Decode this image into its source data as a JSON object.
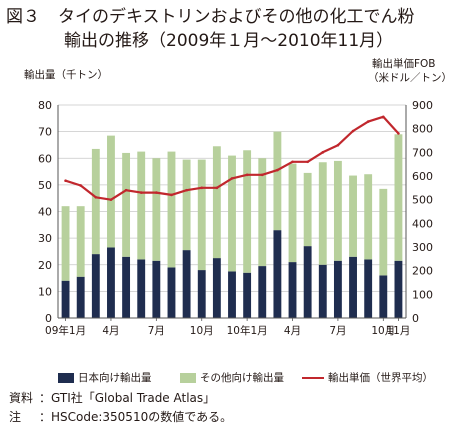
{
  "figure": {
    "number": "図３",
    "title_line1": "タイのデキストリンおよびその他の化工でん粉",
    "title_line2": "輸出の推移（2009年１月〜2010年11月）"
  },
  "chart_data": {
    "type": "bar",
    "stacked": true,
    "ylabel_left": "輸出量（千トン）",
    "ylabel_right_line1": "輸出単価FOB",
    "ylabel_right_line2": "（米ドル／トン）",
    "ylim_left": [
      0,
      80
    ],
    "yticks_left": [
      0,
      10,
      20,
      30,
      40,
      50,
      60,
      70,
      80
    ],
    "ylim_right": [
      0,
      900
    ],
    "yticks_right": [
      0,
      100,
      200,
      300,
      400,
      500,
      600,
      700,
      800,
      900
    ],
    "categories": [
      "2009-01",
      "2009-02",
      "2009-03",
      "2009-04",
      "2009-05",
      "2009-06",
      "2009-07",
      "2009-08",
      "2009-09",
      "2009-10",
      "2009-11",
      "2009-12",
      "2010-01",
      "2010-02",
      "2010-03",
      "2010-04",
      "2010-05",
      "2010-06",
      "2010-07",
      "2010-08",
      "2010-09",
      "2010-10",
      "2010-11"
    ],
    "x_tick_labels": [
      {
        "index": 0,
        "label": "09年1月"
      },
      {
        "index": 3,
        "label": "4月"
      },
      {
        "index": 6,
        "label": "7月"
      },
      {
        "index": 9,
        "label": "10月"
      },
      {
        "index": 12,
        "label": "10年1月"
      },
      {
        "index": 15,
        "label": "4月"
      },
      {
        "index": 18,
        "label": "7月"
      },
      {
        "index": 21,
        "label": "10月"
      },
      {
        "index": 22,
        "label": "11月"
      }
    ],
    "grid": true,
    "legend_position": "bottom",
    "series": [
      {
        "name": "日本向け輸出量",
        "kind": "bar",
        "axis": "left",
        "color": "#1f2d4f",
        "values": [
          14,
          15.5,
          24,
          26.5,
          23,
          22,
          21.5,
          19,
          25.5,
          18,
          22.5,
          17.5,
          17,
          19.5,
          33,
          21,
          27,
          20,
          21.5,
          23,
          22,
          16,
          21.5
        ]
      },
      {
        "name": "その他向け輸出量",
        "kind": "bar",
        "axis": "left",
        "color": "#b7d09c",
        "values": [
          28,
          26.5,
          39.5,
          42,
          39,
          40.5,
          38.5,
          43.5,
          34,
          41.5,
          42,
          43.5,
          46,
          40.5,
          37,
          37,
          27.5,
          38.5,
          37.5,
          30.5,
          32,
          32.5,
          47.5
        ]
      },
      {
        "name": "輸出単価（世界平均）",
        "kind": "line",
        "axis": "right",
        "color": "#c1272d",
        "values": [
          580,
          560,
          510,
          500,
          540,
          530,
          530,
          520,
          540,
          550,
          550,
          590,
          605,
          605,
          625,
          660,
          660,
          700,
          730,
          790,
          830,
          850,
          780
        ]
      }
    ]
  },
  "notes": [
    {
      "label": "資料",
      "text": "：GTI社「Global Trade Atlas」"
    },
    {
      "label": "注",
      "text": "：HSCode:350510の数値である。"
    }
  ]
}
